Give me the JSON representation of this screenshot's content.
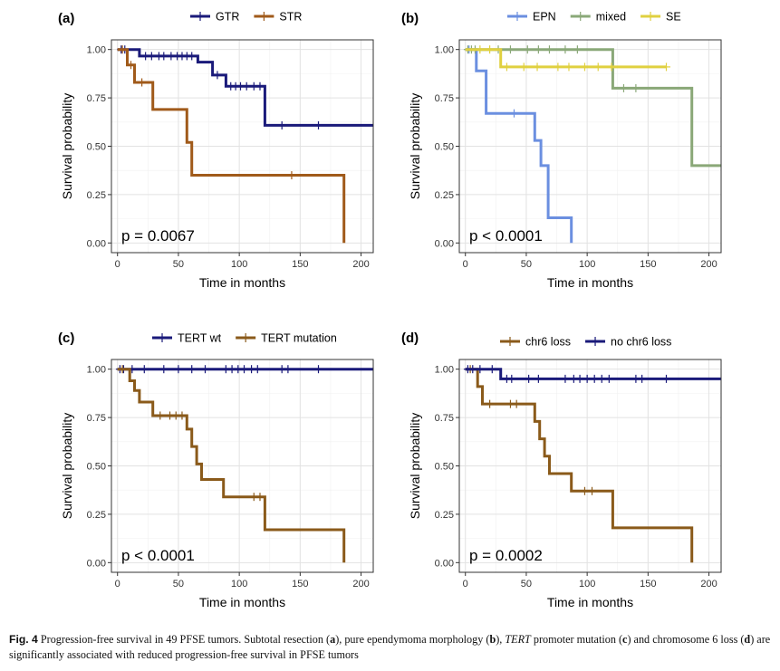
{
  "figure": {
    "caption": {
      "fig_label": "Fig. 4",
      "text_1": "Progression-free survival in 49 PFSE tumors. Subtotal resection (",
      "bold_a": "a",
      "text_2": "), pure ependymoma morphology (",
      "bold_b": "b",
      "text_3": "), ",
      "italic_tert": "TERT",
      "text_4": " promoter mutation (",
      "bold_c": "c",
      "text_5": ") and chromosome 6 loss (",
      "bold_d": "d",
      "text_6": ") are significantly associated with reduced progression-free survival in PFSE tumors"
    }
  },
  "chart_data": [
    {
      "panel": "(a)",
      "type": "line",
      "subtype": "kaplan-meier",
      "xlabel": "Time in months",
      "ylabel": "Survival probability",
      "xlim": [
        -5,
        210
      ],
      "ylim": [
        -0.05,
        1.05
      ],
      "xticks": [
        0,
        50,
        100,
        150,
        200
      ],
      "yticks": [
        "0.00",
        "0.25",
        "0.50",
        "0.75",
        "1.00"
      ],
      "ytick_values": [
        0,
        0.25,
        0.5,
        0.75,
        1
      ],
      "grid": true,
      "legend_position": "top",
      "pvalue": "p = 0.0067",
      "series": [
        {
          "name": "GTR",
          "color": "#1a1a7a",
          "steps": [
            [
              0,
              1
            ],
            [
              18,
              0.966
            ],
            [
              66,
              0.935
            ],
            [
              78,
              0.868
            ],
            [
              89,
              0.81
            ],
            [
              121,
              0.608
            ],
            [
              210,
              0.608
            ]
          ],
          "censors": [
            [
              3,
              1
            ],
            [
              6,
              1
            ],
            [
              23,
              0.966
            ],
            [
              28,
              0.966
            ],
            [
              34,
              0.966
            ],
            [
              38,
              0.966
            ],
            [
              44,
              0.966
            ],
            [
              49,
              0.966
            ],
            [
              53,
              0.966
            ],
            [
              57,
              0.966
            ],
            [
              61,
              0.966
            ],
            [
              82,
              0.868
            ],
            [
              93,
              0.81
            ],
            [
              97,
              0.81
            ],
            [
              101,
              0.81
            ],
            [
              106,
              0.81
            ],
            [
              112,
              0.81
            ],
            [
              117,
              0.81
            ],
            [
              135,
              0.608
            ],
            [
              165,
              0.608
            ]
          ]
        },
        {
          "name": "STR",
          "color": "#a05a1a",
          "steps": [
            [
              0,
              1
            ],
            [
              8,
              0.92
            ],
            [
              14,
              0.83
            ],
            [
              29,
              0.69
            ],
            [
              57,
              0.52
            ],
            [
              61,
              0.35
            ],
            [
              186,
              0.35
            ],
            [
              186,
              0
            ]
          ],
          "censors": [
            [
              4,
              1
            ],
            [
              11,
              0.92
            ],
            [
              20,
              0.83
            ],
            [
              143,
              0.35
            ]
          ]
        }
      ]
    },
    {
      "panel": "(b)",
      "type": "line",
      "subtype": "kaplan-meier",
      "xlabel": "Time in months",
      "ylabel": "Survival probability",
      "xlim": [
        -5,
        210
      ],
      "ylim": [
        -0.05,
        1.05
      ],
      "xticks": [
        0,
        50,
        100,
        150,
        200
      ],
      "yticks": [
        "0.00",
        "0.25",
        "0.50",
        "0.75",
        "1.00"
      ],
      "ytick_values": [
        0,
        0.25,
        0.5,
        0.75,
        1
      ],
      "grid": true,
      "legend_position": "top",
      "pvalue": "p < 0.0001",
      "series": [
        {
          "name": "EPN",
          "color": "#6b8fe0",
          "steps": [
            [
              0,
              1
            ],
            [
              9,
              0.89
            ],
            [
              17,
              0.67
            ],
            [
              57,
              0.53
            ],
            [
              62,
              0.4
            ],
            [
              68,
              0.13
            ],
            [
              87,
              0.13
            ],
            [
              87,
              0
            ]
          ],
          "censors": [
            [
              3,
              1
            ],
            [
              40,
              0.67
            ]
          ]
        },
        {
          "name": "mixed",
          "color": "#8aa878",
          "steps": [
            [
              0,
              1
            ],
            [
              121,
              0.8
            ],
            [
              186,
              0.4
            ],
            [
              210,
              0.4
            ]
          ],
          "censors": [
            [
              2,
              1
            ],
            [
              5,
              1
            ],
            [
              8,
              1
            ],
            [
              27,
              1
            ],
            [
              37,
              1
            ],
            [
              51,
              1
            ],
            [
              60,
              1
            ],
            [
              69,
              1
            ],
            [
              82,
              1
            ],
            [
              92,
              1
            ],
            [
              130,
              0.8
            ],
            [
              140,
              0.8
            ]
          ]
        },
        {
          "name": "SE",
          "color": "#e0d040",
          "steps": [
            [
              0,
              1
            ],
            [
              29,
              0.91
            ],
            [
              165,
              0.91
            ]
          ],
          "censors": [
            [
              12,
              1
            ],
            [
              20,
              1
            ],
            [
              34,
              0.91
            ],
            [
              48,
              0.91
            ],
            [
              59,
              0.91
            ],
            [
              76,
              0.91
            ],
            [
              85,
              0.91
            ],
            [
              98,
              0.91
            ],
            [
              109,
              0.91
            ],
            [
              120,
              0.91
            ],
            [
              165,
              0.91
            ]
          ]
        }
      ]
    },
    {
      "panel": "(c)",
      "type": "line",
      "subtype": "kaplan-meier",
      "xlabel": "Time in months",
      "ylabel": "Survival probability",
      "xlim": [
        -5,
        210
      ],
      "ylim": [
        -0.05,
        1.05
      ],
      "xticks": [
        0,
        50,
        100,
        150,
        200
      ],
      "yticks": [
        "0.00",
        "0.25",
        "0.50",
        "0.75",
        "1.00"
      ],
      "ytick_values": [
        0,
        0.25,
        0.5,
        0.75,
        1
      ],
      "grid": true,
      "legend_position": "top",
      "pvalue": "p < 0.0001",
      "series": [
        {
          "name": "TERT wt",
          "color": "#1a1a7a",
          "steps": [
            [
              0,
              1
            ],
            [
              210,
              1
            ]
          ],
          "censors": [
            [
              2,
              1
            ],
            [
              5,
              1
            ],
            [
              12,
              1
            ],
            [
              22,
              1
            ],
            [
              38,
              1
            ],
            [
              50,
              1
            ],
            [
              61,
              1
            ],
            [
              72,
              1
            ],
            [
              89,
              1
            ],
            [
              94,
              1
            ],
            [
              99,
              1
            ],
            [
              104,
              1
            ],
            [
              110,
              1
            ],
            [
              115,
              1
            ],
            [
              135,
              1
            ],
            [
              140,
              1
            ],
            [
              165,
              1
            ]
          ]
        },
        {
          "name": "TERT mutation",
          "color": "#8a5a1a",
          "steps": [
            [
              0,
              1
            ],
            [
              10,
              0.94
            ],
            [
              14,
              0.89
            ],
            [
              18,
              0.83
            ],
            [
              29,
              0.76
            ],
            [
              57,
              0.69
            ],
            [
              61,
              0.6
            ],
            [
              65,
              0.51
            ],
            [
              69,
              0.43
            ],
            [
              87,
              0.34
            ],
            [
              121,
              0.17
            ],
            [
              186,
              0.17
            ],
            [
              186,
              0
            ]
          ],
          "censors": [
            [
              4,
              1
            ],
            [
              35,
              0.76
            ],
            [
              43,
              0.76
            ],
            [
              48,
              0.76
            ],
            [
              53,
              0.76
            ],
            [
              112,
              0.34
            ],
            [
              117,
              0.34
            ]
          ]
        }
      ]
    },
    {
      "panel": "(d)",
      "type": "line",
      "subtype": "kaplan-meier",
      "xlabel": "Time in months",
      "ylabel": "Survival probability",
      "xlim": [
        -5,
        210
      ],
      "ylim": [
        -0.05,
        1.05
      ],
      "xticks": [
        0,
        50,
        100,
        150,
        200
      ],
      "yticks": [
        "0.00",
        "0.25",
        "0.50",
        "0.75",
        "1.00"
      ],
      "ytick_values": [
        0,
        0.25,
        0.5,
        0.75,
        1
      ],
      "grid": true,
      "legend_position": "top",
      "pvalue": "p = 0.0002",
      "series": [
        {
          "name": "chr6 loss",
          "color": "#8a5a1a",
          "steps": [
            [
              0,
              1
            ],
            [
              10,
              0.91
            ],
            [
              14,
              0.82
            ],
            [
              57,
              0.73
            ],
            [
              61,
              0.64
            ],
            [
              65,
              0.55
            ],
            [
              69,
              0.46
            ],
            [
              87,
              0.37
            ],
            [
              121,
              0.18
            ],
            [
              186,
              0.18
            ],
            [
              186,
              0
            ]
          ],
          "censors": [
            [
              4,
              1
            ],
            [
              20,
              0.82
            ],
            [
              37,
              0.82
            ],
            [
              42,
              0.82
            ],
            [
              98,
              0.37
            ],
            [
              104,
              0.37
            ]
          ]
        },
        {
          "name": "no chr6 loss",
          "color": "#1a1a7a",
          "steps": [
            [
              0,
              1
            ],
            [
              29,
              0.95
            ],
            [
              210,
              0.95
            ]
          ],
          "censors": [
            [
              2,
              1
            ],
            [
              6,
              1
            ],
            [
              12,
              1
            ],
            [
              22,
              1
            ],
            [
              34,
              0.95
            ],
            [
              38,
              0.95
            ],
            [
              52,
              0.95
            ],
            [
              60,
              0.95
            ],
            [
              82,
              0.95
            ],
            [
              89,
              0.95
            ],
            [
              94,
              0.95
            ],
            [
              100,
              0.95
            ],
            [
              106,
              0.95
            ],
            [
              112,
              0.95
            ],
            [
              118,
              0.95
            ],
            [
              140,
              0.95
            ],
            [
              145,
              0.95
            ],
            [
              165,
              0.95
            ]
          ]
        }
      ]
    }
  ]
}
